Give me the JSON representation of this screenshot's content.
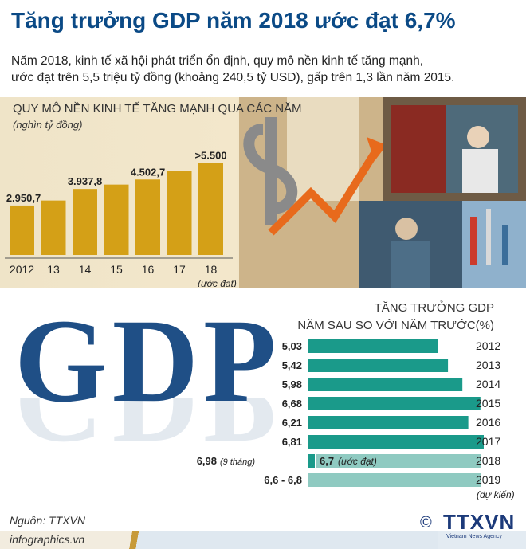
{
  "header": {
    "title": "Tăng trưởng GDP năm 2018 ước đạt 6,7%",
    "intro_line1": "Năm 2018, kinh tế xã hội phát triển ổn định, quy mô nền kinh tế tăng mạnh,",
    "intro_line2": "ước đạt trên 5,5 triệu tỷ đồng (khoảng 240,5 tỷ USD), gấp trên 1,3 lần năm 2015."
  },
  "colors": {
    "title": "#0b4a86",
    "bar_gold": "#d4a017",
    "bar_teal": "#1a9a8a",
    "bar_teal_light": "#8fcac1"
  },
  "chart_data": [
    {
      "type": "bar",
      "title": "QUY MÔ NỀN KINH TẾ TĂNG MẠNH QUA CÁC NĂM",
      "unit": "(nghìn tỷ đồng)",
      "categories": [
        "2012",
        "13",
        "14",
        "15",
        "16",
        "17",
        "18"
      ],
      "category_note": "(ước đạt)",
      "values": [
        2950.7,
        3250,
        3937.8,
        4200,
        4502.7,
        5000,
        5500
      ],
      "labels": [
        "2.950,7",
        "",
        "3.937,8",
        "",
        "4.502,7",
        "",
        ">5.500"
      ],
      "ylim": [
        0,
        5800
      ]
    },
    {
      "type": "bar",
      "orientation": "horizontal",
      "title_line1": "TĂNG TRƯỞNG GDP",
      "title_line2": "NĂM SAU SO VỚI NĂM TRƯỚC(%)",
      "rows": [
        {
          "year": "2012",
          "value": 5.03,
          "label": "5,03"
        },
        {
          "year": "2013",
          "value": 5.42,
          "label": "5,42"
        },
        {
          "year": "2014",
          "value": 5.98,
          "label": "5,98"
        },
        {
          "year": "2015",
          "value": 6.68,
          "label": "6,68"
        },
        {
          "year": "2016",
          "value": 6.21,
          "label": "6,21"
        },
        {
          "year": "2017",
          "value": 6.81,
          "label": "6,81"
        },
        {
          "year": "2018",
          "value": 6.7,
          "label": "6,7",
          "label_note": "(ước đạt)",
          "extra_label": "6,98",
          "extra_note": "(9 tháng)"
        },
        {
          "year": "2019",
          "year_note": "(dự kiến)",
          "value": 6.7,
          "label": "6,6 - 6,8"
        }
      ]
    }
  ],
  "gdp_logo": "GDP",
  "footer": {
    "source": "Nguồn: TTXVN",
    "site": "infographics.vn",
    "copyright": "©",
    "logo": "TTXVN",
    "logo_sub": "Vietnam News Agency"
  }
}
